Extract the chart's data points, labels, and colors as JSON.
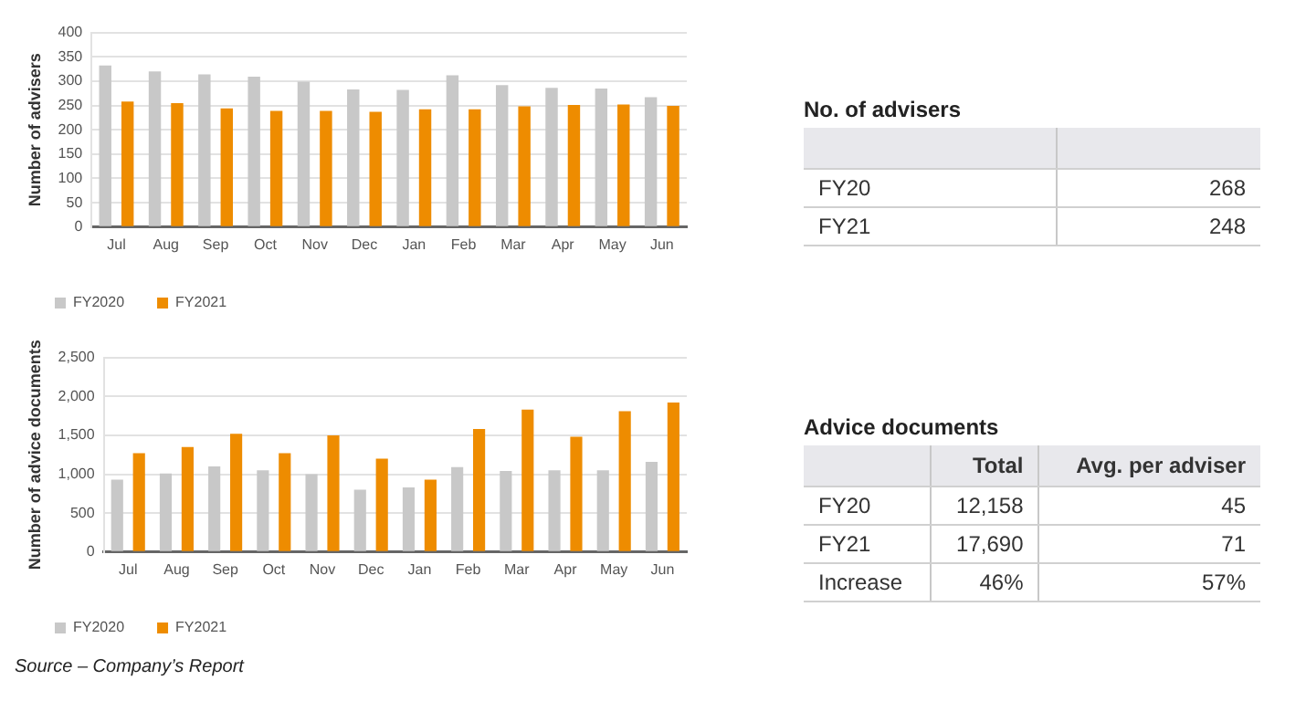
{
  "chart_data": [
    {
      "type": "bar",
      "ylabel": "Number of advisers",
      "categories": [
        "Jul",
        "Aug",
        "Sep",
        "Oct",
        "Nov",
        "Dec",
        "Jan",
        "Feb",
        "Mar",
        "Apr",
        "May",
        "Jun"
      ],
      "series": [
        {
          "name": "FY2020",
          "color": "#c8c8c8",
          "values": [
            332,
            320,
            314,
            309,
            299,
            283,
            282,
            312,
            292,
            286,
            285,
            267
          ]
        },
        {
          "name": "FY2021",
          "color": "#ee8c00",
          "values": [
            258,
            255,
            244,
            239,
            239,
            237,
            242,
            242,
            248,
            251,
            252,
            249
          ]
        }
      ],
      "ylim": [
        0,
        400
      ],
      "yticks": [
        0,
        50,
        100,
        150,
        200,
        250,
        300,
        350,
        400
      ],
      "grid": "y",
      "legend": "bottom"
    },
    {
      "type": "other",
      "title": "No. of advisers",
      "categories": [
        null
      ],
      "y_categories": [
        "FY20",
        "FY21"
      ],
      "cell_labels": [
        [
          "268"
        ],
        [
          "248"
        ]
      ]
    },
    {
      "type": "bar",
      "ylabel": "Number of advice documents",
      "categories": [
        "Jul",
        "Aug",
        "Sep",
        "Oct",
        "Nov",
        "Dec",
        "Jan",
        "Feb",
        "Mar",
        "Apr",
        "May",
        "Jun"
      ],
      "series": [
        {
          "name": "FY2020",
          "color": "#c8c8c8",
          "values": [
            930,
            1010,
            1100,
            1050,
            1000,
            800,
            830,
            1090,
            1040,
            1050,
            1050,
            1160
          ]
        },
        {
          "name": "FY2021",
          "color": "#ee8c00",
          "values": [
            1270,
            1350,
            1520,
            1270,
            1500,
            1200,
            930,
            1580,
            1830,
            1480,
            1810,
            1920
          ]
        }
      ],
      "ylim": [
        0,
        2500
      ],
      "yticks": [
        0,
        {
          "value": 500,
          "label": "500"
        },
        {
          "value": 1000,
          "label": "1,000"
        },
        {
          "value": 1500,
          "label": "1,500"
        },
        {
          "value": 2000,
          "label": "2,000"
        },
        {
          "value": 2500,
          "label": "2,500"
        }
      ],
      "grid": "y",
      "legend": "bottom",
      "annotations": [
        "Source – Company’s Report"
      ]
    },
    {
      "type": "other",
      "title": "Advice documents",
      "categories": [
        "Total",
        "Avg. per adviser"
      ],
      "y_categories": [
        "FY20",
        "FY21",
        "Increase"
      ],
      "cell_labels": [
        [
          "12,158",
          "45"
        ],
        [
          "17,690",
          "71"
        ],
        [
          "46%",
          "57%"
        ]
      ]
    }
  ]
}
